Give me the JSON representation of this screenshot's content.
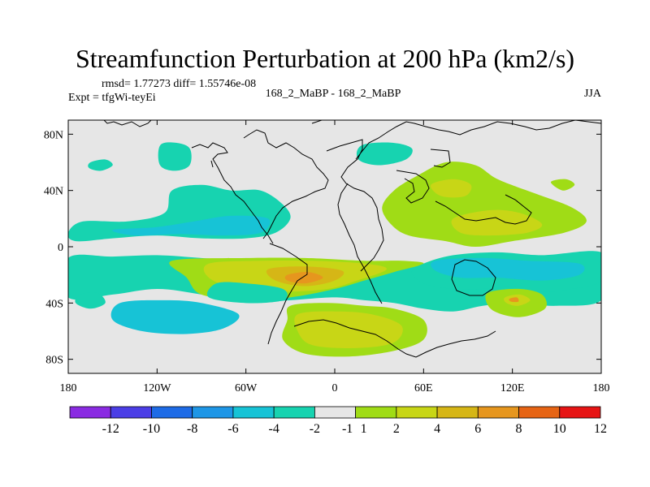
{
  "title": "Streamfunction Perturbation at 200 hPa (km2/s)",
  "stats": "rmsd= 1.77273 diff= 1.55746e-08",
  "expt": "Expt = tfgWi-teyEi",
  "center_label": "168_2_MaBP - 168_2_MaBP",
  "season": "JJA",
  "chart_data": {
    "type": "heatmap",
    "title": "Streamfunction Perturbation at 200 hPa (km2/s)",
    "xlim": [
      -180,
      180
    ],
    "ylim": [
      -90,
      90
    ],
    "x_ticks": [
      {
        "value": -180,
        "label": "180"
      },
      {
        "value": -120,
        "label": "120W"
      },
      {
        "value": -60,
        "label": "60W"
      },
      {
        "value": 0,
        "label": "0"
      },
      {
        "value": 60,
        "label": "60E"
      },
      {
        "value": 120,
        "label": "120E"
      },
      {
        "value": 180,
        "label": "180"
      }
    ],
    "y_ticks": [
      {
        "value": 80,
        "label": "80N"
      },
      {
        "value": 40,
        "label": "40N"
      },
      {
        "value": 0,
        "label": "0"
      },
      {
        "value": -40,
        "label": "40S"
      },
      {
        "value": -80,
        "label": "80S"
      }
    ],
    "colorbar": {
      "colors": [
        "#8a2be2",
        "#4b3ee6",
        "#1e6be6",
        "#1e96e6",
        "#17c3d6",
        "#17d3b0",
        "#e6e6e6",
        "#a0dc16",
        "#c8d616",
        "#d6b616",
        "#e6961e",
        "#e66414",
        "#e61414"
      ],
      "labels": [
        "-12",
        "-10",
        "-8",
        "-6",
        "-4",
        "-2",
        "-1",
        "1",
        "2",
        "4",
        "6",
        "8",
        "10",
        "12"
      ],
      "label_boundaries": [
        1,
        2,
        3,
        4,
        5,
        6,
        7,
        7,
        8,
        9,
        10,
        11,
        12,
        13
      ]
    },
    "contour_regions": [
      {
        "level": "-2",
        "color": "#17d3b0",
        "pts": [
          [
            -180,
            -8
          ],
          [
            -150,
            -7
          ],
          [
            -120,
            -6
          ],
          [
            -90,
            -8
          ],
          [
            -60,
            -10
          ],
          [
            -30,
            -12
          ],
          [
            0,
            -12
          ],
          [
            30,
            -14
          ],
          [
            60,
            -12
          ],
          [
            90,
            -10
          ],
          [
            120,
            -10
          ],
          [
            150,
            -11
          ],
          [
            180,
            -12
          ],
          [
            180,
            -38
          ],
          [
            150,
            -42
          ],
          [
            120,
            -40
          ],
          [
            100,
            -42
          ],
          [
            80,
            -46
          ],
          [
            60,
            -44
          ],
          [
            40,
            -40
          ],
          [
            20,
            -38
          ],
          [
            0,
            -36
          ],
          [
            -30,
            -38
          ],
          [
            -60,
            -40
          ],
          [
            -90,
            -34
          ],
          [
            -120,
            -30
          ],
          [
            -150,
            -34
          ],
          [
            -180,
            -36
          ]
        ]
      },
      {
        "level": "2",
        "color": "#a0dc16",
        "pts": [
          [
            -110,
            -10
          ],
          [
            -60,
            -8
          ],
          [
            -20,
            -8
          ],
          [
            20,
            -10
          ],
          [
            45,
            -10
          ],
          [
            60,
            -12
          ],
          [
            40,
            -18
          ],
          [
            20,
            -24
          ],
          [
            0,
            -30
          ],
          [
            -30,
            -36
          ],
          [
            -60,
            -38
          ],
          [
            -90,
            -34
          ],
          [
            -100,
            -22
          ]
        ]
      },
      {
        "level": "4",
        "color": "#c8d616",
        "pts": [
          [
            -85,
            -12
          ],
          [
            -50,
            -10
          ],
          [
            -15,
            -10
          ],
          [
            20,
            -12
          ],
          [
            35,
            -16
          ],
          [
            15,
            -24
          ],
          [
            -5,
            -30
          ],
          [
            -35,
            -32
          ],
          [
            -65,
            -30
          ],
          [
            -85,
            -22
          ]
        ]
      },
      {
        "level": "6",
        "color": "#d6b616",
        "pts": [
          [
            -45,
            -16
          ],
          [
            -20,
            -14
          ],
          [
            5,
            -17
          ],
          [
            0,
            -24
          ],
          [
            -20,
            -28
          ],
          [
            -40,
            -24
          ]
        ]
      },
      {
        "level": "8",
        "color": "#e6961e",
        "pts": [
          [
            -32,
            -20
          ],
          [
            -18,
            -18
          ],
          [
            -8,
            -22
          ],
          [
            -20,
            -26
          ],
          [
            -32,
            -24
          ]
        ]
      },
      {
        "level": "-2",
        "color": "#17d3b0",
        "pts": [
          [
            -80,
            -26
          ],
          [
            -60,
            -26
          ],
          [
            -35,
            -30
          ],
          [
            -35,
            -38
          ],
          [
            -60,
            -40
          ],
          [
            -85,
            -36
          ]
        ]
      },
      {
        "level": "-2",
        "color": "#17d3b0",
        "pts": [
          [
            60,
            -12
          ],
          [
            80,
            -6
          ],
          [
            110,
            -4
          ],
          [
            140,
            -6
          ],
          [
            180,
            -4
          ],
          [
            180,
            -24
          ],
          [
            160,
            -30
          ],
          [
            140,
            -32
          ],
          [
            120,
            -28
          ],
          [
            100,
            -30
          ],
          [
            80,
            -30
          ],
          [
            60,
            -26
          ],
          [
            52,
            -18
          ]
        ]
      },
      {
        "level": "-4",
        "color": "#17c3d6",
        "pts": [
          [
            68,
            -10
          ],
          [
            100,
            -8
          ],
          [
            130,
            -10
          ],
          [
            165,
            -12
          ],
          [
            165,
            -20
          ],
          [
            140,
            -24
          ],
          [
            110,
            -22
          ],
          [
            85,
            -22
          ],
          [
            68,
            -17
          ]
        ]
      },
      {
        "level": "2",
        "color": "#a0dc16",
        "pts": [
          [
            105,
            -32
          ],
          [
            125,
            -30
          ],
          [
            140,
            -34
          ],
          [
            142,
            -44
          ],
          [
            125,
            -50
          ],
          [
            108,
            -46
          ],
          [
            102,
            -38
          ]
        ]
      },
      {
        "level": "4",
        "color": "#c8d616",
        "pts": [
          [
            115,
            -36
          ],
          [
            125,
            -34
          ],
          [
            132,
            -38
          ],
          [
            124,
            -42
          ],
          [
            116,
            -40
          ]
        ]
      },
      {
        "level": "6",
        "color": "#e6961e",
        "pts": [
          [
            118,
            -37
          ],
          [
            123,
            -36
          ],
          [
            124,
            -39
          ],
          [
            119,
            -39
          ]
        ]
      },
      {
        "level": "-4",
        "color": "#17c3d6",
        "pts": [
          [
            -145,
            -40
          ],
          [
            -115,
            -38
          ],
          [
            -90,
            -40
          ],
          [
            -65,
            -48
          ],
          [
            -75,
            -58
          ],
          [
            -100,
            -62
          ],
          [
            -130,
            -60
          ],
          [
            -150,
            -52
          ]
        ]
      },
      {
        "level": "-2",
        "color": "#17d3b0",
        "pts": [
          [
            -172,
            -34
          ],
          [
            -160,
            -33
          ],
          [
            -155,
            -40
          ],
          [
            -165,
            -44
          ],
          [
            -175,
            -40
          ]
        ]
      },
      {
        "level": "2",
        "color": "#a0dc16",
        "pts": [
          [
            -30,
            -42
          ],
          [
            -5,
            -40
          ],
          [
            20,
            -42
          ],
          [
            40,
            -44
          ],
          [
            60,
            -52
          ],
          [
            60,
            -66
          ],
          [
            40,
            -74
          ],
          [
            10,
            -78
          ],
          [
            -20,
            -76
          ],
          [
            -35,
            -66
          ],
          [
            -32,
            -52
          ]
        ]
      },
      {
        "level": "4",
        "color": "#c8d616",
        "pts": [
          [
            -25,
            -48
          ],
          [
            0,
            -46
          ],
          [
            25,
            -48
          ],
          [
            45,
            -56
          ],
          [
            40,
            -68
          ],
          [
            15,
            -72
          ],
          [
            -15,
            -70
          ],
          [
            -25,
            -60
          ]
        ]
      },
      {
        "level": "-2",
        "color": "#17d3b0",
        "pts": [
          [
            -110,
            40
          ],
          [
            -90,
            44
          ],
          [
            -70,
            40
          ],
          [
            -50,
            40
          ],
          [
            -35,
            30
          ],
          [
            -30,
            20
          ],
          [
            -40,
            10
          ],
          [
            -60,
            6
          ],
          [
            -90,
            6
          ],
          [
            -120,
            8
          ],
          [
            -150,
            6
          ],
          [
            -175,
            4
          ],
          [
            -180,
            10
          ],
          [
            -170,
            18
          ],
          [
            -140,
            18
          ],
          [
            -115,
            24
          ]
        ]
      },
      {
        "level": "-4",
        "color": "#17c3d6",
        "pts": [
          [
            -150,
            12
          ],
          [
            -120,
            14
          ],
          [
            -95,
            18
          ],
          [
            -70,
            22
          ],
          [
            -45,
            20
          ],
          [
            -50,
            10
          ],
          [
            -75,
            8
          ],
          [
            -105,
            9
          ],
          [
            -135,
            8
          ]
        ]
      },
      {
        "level": "-2",
        "color": "#17d3b0",
        "pts": [
          [
            -118,
            72
          ],
          [
            -108,
            74
          ],
          [
            -98,
            70
          ],
          [
            -98,
            58
          ],
          [
            -108,
            54
          ],
          [
            -118,
            58
          ]
        ]
      },
      {
        "level": "-2",
        "color": "#17d3b0",
        "pts": [
          [
            -165,
            60
          ],
          [
            -155,
            62
          ],
          [
            -150,
            58
          ],
          [
            -158,
            54
          ],
          [
            -166,
            56
          ]
        ]
      },
      {
        "level": "-2",
        "color": "#17d3b0",
        "pts": [
          [
            18,
            72
          ],
          [
            38,
            74
          ],
          [
            52,
            70
          ],
          [
            48,
            62
          ],
          [
            30,
            58
          ],
          [
            16,
            62
          ]
        ]
      },
      {
        "level": "2",
        "color": "#a0dc16",
        "pts": [
          [
            40,
            40
          ],
          [
            55,
            50
          ],
          [
            75,
            60
          ],
          [
            95,
            58
          ],
          [
            110,
            48
          ],
          [
            135,
            38
          ],
          [
            160,
            28
          ],
          [
            170,
            18
          ],
          [
            155,
            10
          ],
          [
            120,
            4
          ],
          [
            95,
            0
          ],
          [
            75,
            4
          ],
          [
            50,
            8
          ],
          [
            38,
            16
          ],
          [
            32,
            28
          ]
        ]
      },
      {
        "level": "4",
        "color": "#c8d616",
        "pts": [
          [
            65,
            44
          ],
          [
            80,
            48
          ],
          [
            92,
            44
          ],
          [
            88,
            36
          ],
          [
            72,
            36
          ]
        ]
      },
      {
        "level": "4",
        "color": "#c8d616",
        "pts": [
          [
            80,
            20
          ],
          [
            105,
            26
          ],
          [
            125,
            24
          ],
          [
            140,
            16
          ],
          [
            130,
            10
          ],
          [
            105,
            8
          ],
          [
            85,
            10
          ]
        ]
      },
      {
        "level": "2",
        "color": "#a0dc16",
        "pts": [
          [
            146,
            46
          ],
          [
            156,
            48
          ],
          [
            162,
            44
          ],
          [
            154,
            40
          ]
        ]
      }
    ]
  }
}
